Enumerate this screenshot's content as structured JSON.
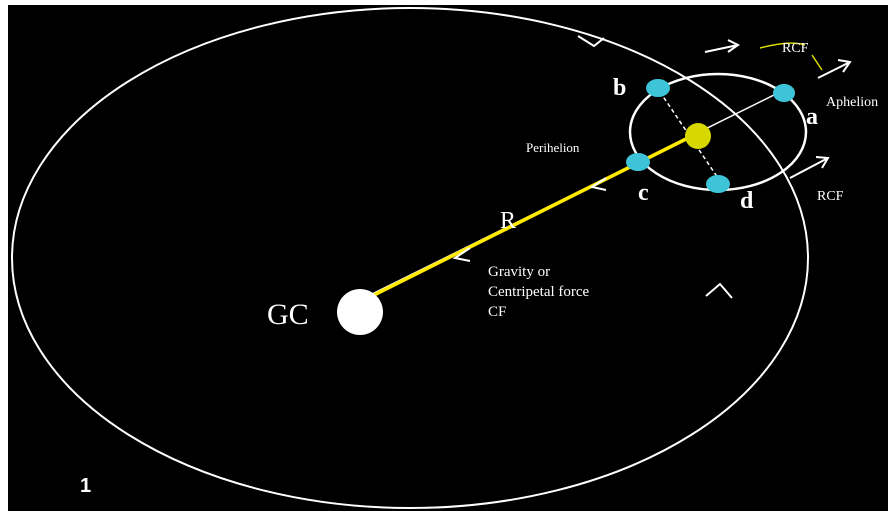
{
  "labels": {
    "rcf_top": "RCF",
    "aphelion": "Aphelion",
    "a": "a",
    "b": "b",
    "perihelion": "Perihelion",
    "c": "c",
    "d": "d",
    "rcf_right": "RCF",
    "r": "R",
    "gravity": [
      "Gravity or",
      "Centripetal force",
      "CF"
    ],
    "gc": "GC",
    "number": "1"
  }
}
